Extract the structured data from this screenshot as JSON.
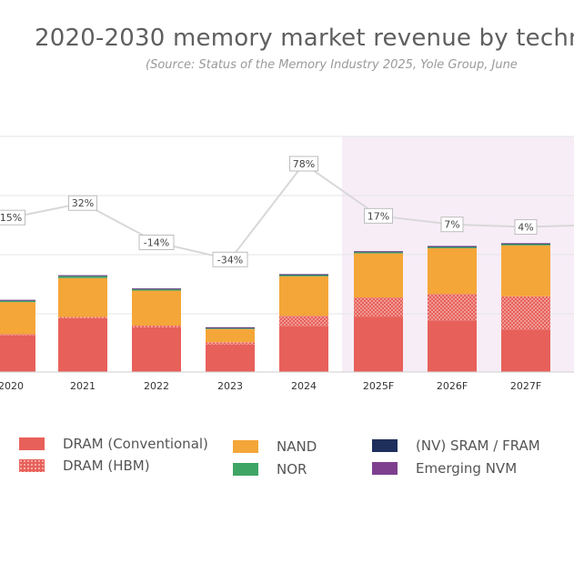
{
  "title": "2020-2030 memory market revenue by techn",
  "source": "(Source: Status of the Memory Industry 2025, Yole Group, June",
  "colors": {
    "dram": "#e8605a",
    "hbm": "#e8605a",
    "nand": "#f4a638",
    "nor": "#3fa565",
    "sram": "#1f2f5c",
    "emerging": "#7f3f8f",
    "forecast_band": "#f7edf7",
    "growth_line": "#d8d8d8"
  },
  "chart_data": {
    "type": "bar",
    "stacked": true,
    "title": "2020-2030 memory market revenue by techn",
    "categories": [
      "2020",
      "2021",
      "2022",
      "2023",
      "2024",
      "2025F",
      "2026F",
      "2027F"
    ],
    "series": [
      {
        "name": "DRAM (Conventional)",
        "values": [
          64,
          94,
          78,
          48,
          80,
          96,
          90,
          74
        ]
      },
      {
        "name": "DRAM (HBM)",
        "values": [
          2,
          2,
          3,
          4,
          18,
          34,
          46,
          58
        ]
      },
      {
        "name": "NAND",
        "values": [
          56,
          68,
          61,
          23,
          69,
          77,
          80,
          89
        ]
      },
      {
        "name": "NOR",
        "values": [
          2,
          3,
          2,
          1,
          2,
          2,
          2,
          2
        ]
      },
      {
        "name": "(NV) SRAM / FRAM",
        "values": [
          1,
          1,
          1,
          1,
          1,
          1,
          1,
          1
        ]
      },
      {
        "name": "Emerging NVM",
        "values": [
          1,
          1,
          1,
          1,
          1,
          1,
          1,
          1
        ]
      }
    ],
    "growth": {
      "labels": [
        "15%",
        "32%",
        "-14%",
        "-34%",
        "78%",
        "17%",
        "7%",
        "4%"
      ],
      "values": [
        15,
        32,
        -14,
        -34,
        78,
        17,
        7,
        4
      ]
    },
    "forecast_start": "2025F",
    "grid": true,
    "legend": "bottom",
    "legend_items": [
      "DRAM (Conventional)",
      "NAND",
      "(NV) SRAM / FRAM",
      "DRAM (HBM)",
      "NOR",
      "Emerging NVM"
    ]
  }
}
